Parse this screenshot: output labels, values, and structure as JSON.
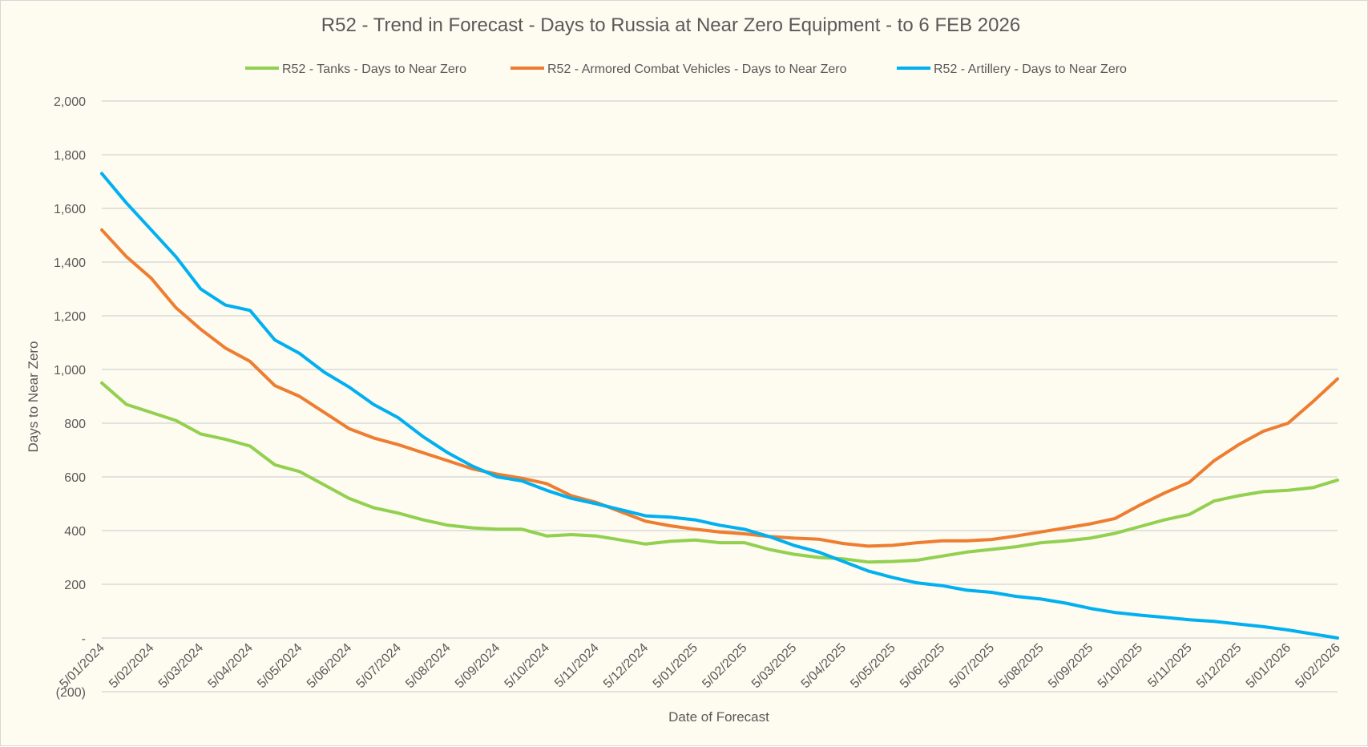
{
  "chart_data": {
    "type": "line",
    "title": "R52 - Trend in Forecast - Days to Russia at Near Zero Equipment - to 6 FEB 2026",
    "xlabel": "Date of Forecast",
    "ylabel": "Days to Near Zero",
    "ylim": [
      -200,
      2000
    ],
    "yticks": [
      -200,
      0,
      200,
      400,
      600,
      800,
      1000,
      1200,
      1400,
      1600,
      1800,
      2000
    ],
    "ytick_labels": [
      "(200)",
      "-",
      "200",
      "400",
      "600",
      "800",
      "1,000",
      "1,200",
      "1,400",
      "1,600",
      "1,800",
      "2,000"
    ],
    "grid": true,
    "legend_position": "top",
    "xtick_labels": [
      "5/01/2024",
      "5/02/2024",
      "5/03/2024",
      "5/04/2024",
      "5/05/2024",
      "5/06/2024",
      "5/07/2024",
      "5/08/2024",
      "5/09/2024",
      "5/10/2024",
      "5/11/2024",
      "5/12/2024",
      "5/01/2025",
      "5/02/2025",
      "5/03/2025",
      "5/04/2025",
      "5/05/2025",
      "5/06/2025",
      "5/07/2025",
      "5/08/2025",
      "5/09/2025",
      "5/10/2025",
      "5/11/2025",
      "5/12/2025",
      "5/01/2026",
      "5/02/2026"
    ],
    "x_months": [
      0,
      0.5,
      1,
      1.5,
      2,
      2.5,
      3,
      3.5,
      4,
      4.5,
      5,
      5.5,
      6,
      6.5,
      7,
      7.5,
      8,
      8.5,
      9,
      9.5,
      10,
      10.5,
      11,
      11.5,
      12,
      12.5,
      13,
      13.5,
      14,
      14.5,
      15,
      15.5,
      16,
      16.5,
      17,
      17.5,
      18,
      18.5,
      19,
      19.5,
      20,
      20.5,
      21,
      21.5,
      22,
      22.5,
      23,
      23.5,
      24,
      24.5,
      25
    ],
    "series": [
      {
        "name": "R52 - Tanks - Days to Near Zero",
        "color": "#92D050",
        "values": [
          950,
          870,
          840,
          810,
          760,
          740,
          715,
          645,
          620,
          570,
          520,
          485,
          465,
          440,
          420,
          410,
          405,
          405,
          380,
          385,
          380,
          365,
          350,
          360,
          365,
          355,
          355,
          330,
          312,
          300,
          295,
          283,
          285,
          290,
          305,
          320,
          330,
          340,
          355,
          362,
          372,
          390,
          415,
          440,
          460,
          510,
          530,
          545,
          550,
          560,
          588
        ]
      },
      {
        "name": "R52 - Armored Combat Vehicles - Days to Near Zero",
        "color": "#ED7D31",
        "values": [
          1520,
          1420,
          1340,
          1230,
          1150,
          1080,
          1030,
          940,
          900,
          840,
          780,
          745,
          720,
          690,
          660,
          630,
          610,
          595,
          575,
          530,
          505,
          470,
          435,
          418,
          405,
          395,
          388,
          378,
          372,
          368,
          352,
          342,
          345,
          355,
          362,
          362,
          367,
          380,
          395,
          410,
          425,
          445,
          495,
          540,
          580,
          660,
          720,
          770,
          800,
          880,
          965
        ]
      },
      {
        "name": "R52 - Artillery - Days to Near Zero",
        "color": "#00B0F0",
        "values": [
          1730,
          1620,
          1520,
          1420,
          1300,
          1240,
          1220,
          1110,
          1060,
          990,
          935,
          870,
          820,
          750,
          690,
          640,
          600,
          585,
          550,
          520,
          500,
          478,
          455,
          450,
          440,
          420,
          405,
          378,
          345,
          320,
          285,
          250,
          225,
          205,
          195,
          178,
          170,
          155,
          145,
          130,
          110,
          95,
          85,
          77,
          68,
          62,
          52,
          42,
          30,
          15,
          0
        ]
      }
    ]
  }
}
